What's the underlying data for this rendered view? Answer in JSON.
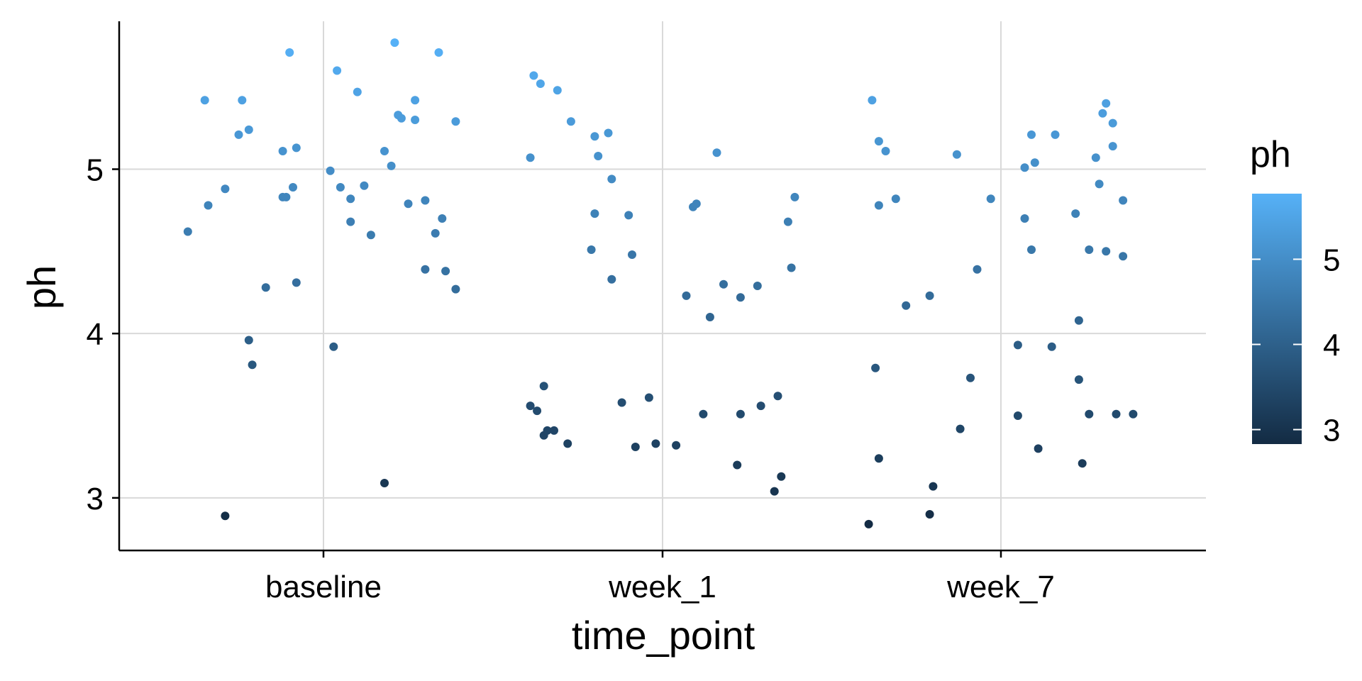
{
  "chart_data": {
    "type": "scatter",
    "xlabel": "time_point",
    "ylabel": "ph",
    "categories": [
      "baseline",
      "week_1",
      "week_7"
    ],
    "ylim": [
      2.68,
      5.9
    ],
    "y_ticks": [
      "3",
      "4",
      "5"
    ],
    "grid": true,
    "legend": {
      "title": "ph",
      "placement": "right",
      "type": "colorbar",
      "range": [
        2.83,
        5.77
      ],
      "ticks": [
        "3",
        "4",
        "5"
      ],
      "color_low": "#132B43",
      "color_high": "#56B1F7"
    },
    "jitter_note": "",
    "series": [
      {
        "category": "baseline",
        "points": [
          [
            -0.4,
            4.62
          ],
          [
            -0.35,
            5.42
          ],
          [
            -0.34,
            4.78
          ],
          [
            -0.29,
            4.88
          ],
          [
            -0.29,
            2.89
          ],
          [
            -0.25,
            5.21
          ],
          [
            -0.24,
            5.42
          ],
          [
            -0.22,
            5.24
          ],
          [
            -0.22,
            3.96
          ],
          [
            -0.21,
            3.81
          ],
          [
            -0.17,
            4.28
          ],
          [
            -0.12,
            5.11
          ],
          [
            -0.12,
            4.83
          ],
          [
            -0.11,
            4.83
          ],
          [
            -0.1,
            5.71
          ],
          [
            -0.09,
            4.89
          ],
          [
            -0.08,
            5.13
          ],
          [
            -0.08,
            4.31
          ],
          [
            0.02,
            4.99
          ],
          [
            0.03,
            3.92
          ],
          [
            0.04,
            5.6
          ],
          [
            0.05,
            4.89
          ],
          [
            0.08,
            4.82
          ],
          [
            0.08,
            4.68
          ],
          [
            0.1,
            5.47
          ],
          [
            0.12,
            4.9
          ],
          [
            0.14,
            4.6
          ],
          [
            0.18,
            5.11
          ],
          [
            0.18,
            3.09
          ],
          [
            0.2,
            5.02
          ],
          [
            0.21,
            5.77
          ],
          [
            0.22,
            5.33
          ],
          [
            0.23,
            5.31
          ],
          [
            0.25,
            4.79
          ],
          [
            0.27,
            5.42
          ],
          [
            0.27,
            5.3
          ],
          [
            0.3,
            4.39
          ],
          [
            0.3,
            4.81
          ],
          [
            0.33,
            4.61
          ],
          [
            0.34,
            5.71
          ],
          [
            0.35,
            4.7
          ],
          [
            0.36,
            4.38
          ],
          [
            0.39,
            5.29
          ],
          [
            0.39,
            4.27
          ]
        ]
      },
      {
        "category": "week_1",
        "points": [
          [
            -0.39,
            3.56
          ],
          [
            -0.39,
            5.07
          ],
          [
            -0.38,
            5.57
          ],
          [
            -0.37,
            3.53
          ],
          [
            -0.36,
            5.52
          ],
          [
            -0.35,
            3.38
          ],
          [
            -0.35,
            3.68
          ],
          [
            -0.34,
            3.41
          ],
          [
            -0.32,
            3.41
          ],
          [
            -0.31,
            5.48
          ],
          [
            -0.28,
            3.33
          ],
          [
            -0.27,
            5.29
          ],
          [
            -0.21,
            4.51
          ],
          [
            -0.2,
            5.2
          ],
          [
            -0.2,
            4.73
          ],
          [
            -0.19,
            5.08
          ],
          [
            -0.16,
            5.22
          ],
          [
            -0.15,
            4.94
          ],
          [
            -0.15,
            4.33
          ],
          [
            -0.12,
            3.58
          ],
          [
            -0.1,
            4.72
          ],
          [
            -0.09,
            4.48
          ],
          [
            -0.08,
            3.31
          ],
          [
            -0.04,
            3.61
          ],
          [
            -0.02,
            3.33
          ],
          [
            0.04,
            3.32
          ],
          [
            0.07,
            4.23
          ],
          [
            0.09,
            4.77
          ],
          [
            0.1,
            4.79
          ],
          [
            0.12,
            3.51
          ],
          [
            0.14,
            4.1
          ],
          [
            0.16,
            5.1
          ],
          [
            0.18,
            4.3
          ],
          [
            0.22,
            3.2
          ],
          [
            0.23,
            4.22
          ],
          [
            0.23,
            3.51
          ],
          [
            0.28,
            4.29
          ],
          [
            0.29,
            3.56
          ],
          [
            0.33,
            3.04
          ],
          [
            0.34,
            3.62
          ],
          [
            0.35,
            3.13
          ],
          [
            0.37,
            4.68
          ],
          [
            0.38,
            4.4
          ],
          [
            0.39,
            4.83
          ]
        ]
      },
      {
        "category": "week_7",
        "points": [
          [
            -0.39,
            2.84
          ],
          [
            -0.38,
            5.42
          ],
          [
            -0.37,
            3.79
          ],
          [
            -0.36,
            5.17
          ],
          [
            -0.36,
            4.78
          ],
          [
            -0.36,
            3.24
          ],
          [
            -0.34,
            5.11
          ],
          [
            -0.31,
            4.82
          ],
          [
            -0.28,
            4.17
          ],
          [
            -0.21,
            4.23
          ],
          [
            -0.21,
            2.9
          ],
          [
            -0.2,
            3.07
          ],
          [
            -0.13,
            5.09
          ],
          [
            -0.12,
            3.42
          ],
          [
            -0.09,
            3.73
          ],
          [
            -0.07,
            4.39
          ],
          [
            -0.03,
            4.82
          ],
          [
            0.05,
            3.93
          ],
          [
            0.05,
            3.5
          ],
          [
            0.07,
            4.7
          ],
          [
            0.07,
            5.01
          ],
          [
            0.09,
            5.21
          ],
          [
            0.09,
            4.51
          ],
          [
            0.1,
            5.04
          ],
          [
            0.11,
            3.3
          ],
          [
            0.15,
            3.92
          ],
          [
            0.16,
            5.21
          ],
          [
            0.22,
            4.73
          ],
          [
            0.23,
            3.72
          ],
          [
            0.23,
            4.08
          ],
          [
            0.24,
            3.21
          ],
          [
            0.26,
            4.51
          ],
          [
            0.26,
            3.51
          ],
          [
            0.28,
            5.07
          ],
          [
            0.29,
            4.91
          ],
          [
            0.3,
            5.34
          ],
          [
            0.31,
            5.4
          ],
          [
            0.31,
            4.5
          ],
          [
            0.33,
            5.28
          ],
          [
            0.33,
            5.14
          ],
          [
            0.34,
            3.51
          ],
          [
            0.36,
            4.81
          ],
          [
            0.36,
            4.47
          ],
          [
            0.39,
            3.51
          ]
        ]
      }
    ]
  }
}
